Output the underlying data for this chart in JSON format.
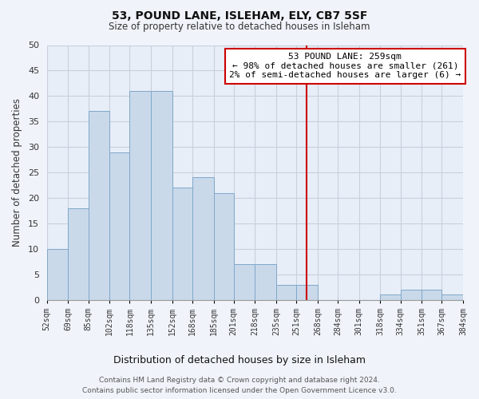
{
  "title": "53, POUND LANE, ISLEHAM, ELY, CB7 5SF",
  "subtitle": "Size of property relative to detached houses in Isleham",
  "xlabel": "Distribution of detached houses by size in Isleham",
  "ylabel": "Number of detached properties",
  "bar_edges": [
    52,
    69,
    85,
    102,
    118,
    135,
    152,
    168,
    185,
    201,
    218,
    235,
    251,
    268,
    284,
    301,
    318,
    334,
    351,
    367,
    384
  ],
  "bar_heights": [
    10,
    18,
    37,
    29,
    41,
    41,
    22,
    24,
    21,
    7,
    7,
    3,
    3,
    0,
    0,
    0,
    1,
    2,
    2,
    1
  ],
  "bar_color": "#c9d9ea",
  "bar_edgecolor": "#7fa8c9",
  "vline_x": 259,
  "vline_color": "#cc0000",
  "ylim": [
    0,
    50
  ],
  "yticks": [
    0,
    5,
    10,
    15,
    20,
    25,
    30,
    35,
    40,
    45,
    50
  ],
  "annotation_line1": "53 POUND LANE: 259sqm",
  "annotation_line2": "← 98% of detached houses are smaller (261)",
  "annotation_line3": "2% of semi-detached houses are larger (6) →",
  "annotation_box_color": "#ffffff",
  "annotation_box_edgecolor": "#cc0000",
  "footer_line1": "Contains HM Land Registry data © Crown copyright and database right 2024.",
  "footer_line2": "Contains public sector information licensed under the Open Government Licence v3.0.",
  "background_color": "#f0f4fa",
  "plot_bg_color": "#e8eef8",
  "grid_color": "#c8d0dc"
}
